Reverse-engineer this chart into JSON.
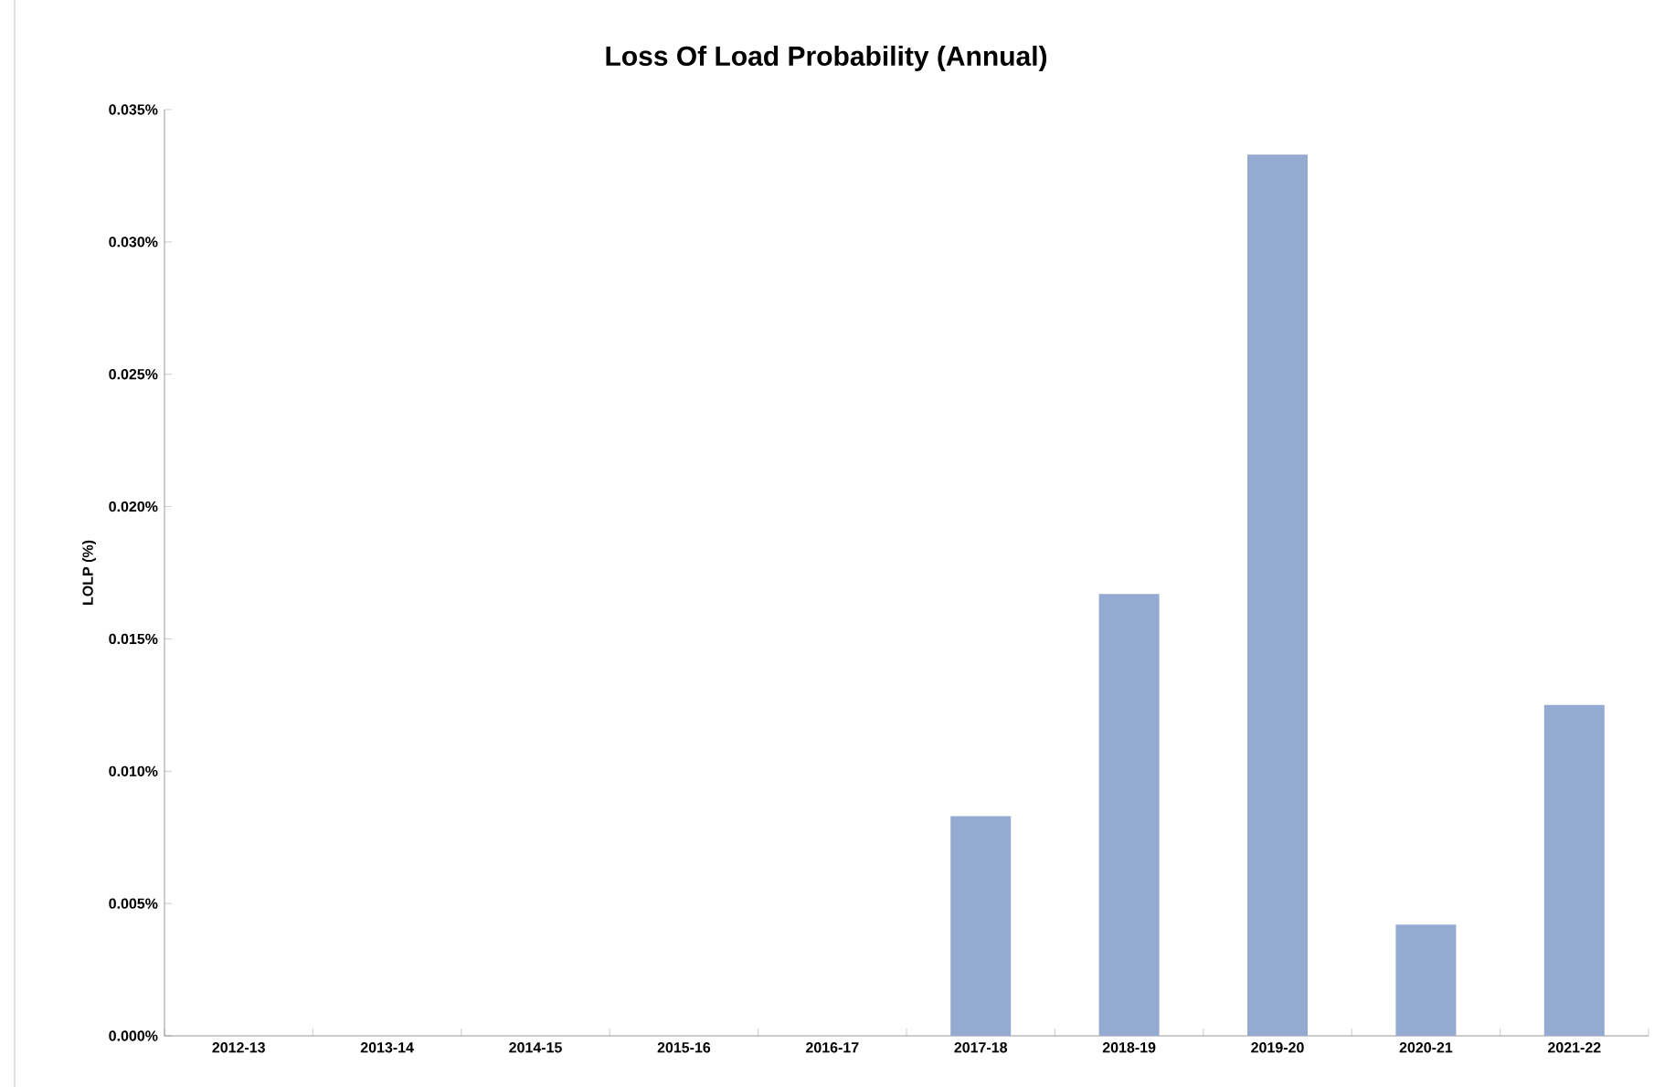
{
  "chart_data": {
    "type": "bar",
    "title": "Loss Of Load Probability (Annual)",
    "ylabel": "LOLP (%)",
    "categories": [
      "2012-13",
      "2013-14",
      "2014-15",
      "2015-16",
      "2016-17",
      "2017-18",
      "2018-19",
      "2019-20",
      "2020-21",
      "2021-22"
    ],
    "values": [
      0,
      0,
      0,
      0,
      0,
      0.0083,
      0.0167,
      0.0333,
      0.0042,
      0.0125
    ],
    "color": "#95aad0",
    "ylim": [
      0,
      0.035
    ],
    "yticks": [
      {
        "value": 0,
        "label": "0.000%"
      },
      {
        "value": 0.005,
        "label": "0.005%"
      },
      {
        "value": 0.01,
        "label": "0.010%"
      },
      {
        "value": 0.015,
        "label": "0.015%"
      },
      {
        "value": 0.02,
        "label": "0.020%"
      },
      {
        "value": 0.025,
        "label": "0.025%"
      },
      {
        "value": 0.03,
        "label": "0.030%"
      },
      {
        "value": 0.035,
        "label": "0.035%"
      }
    ],
    "grid": false
  }
}
